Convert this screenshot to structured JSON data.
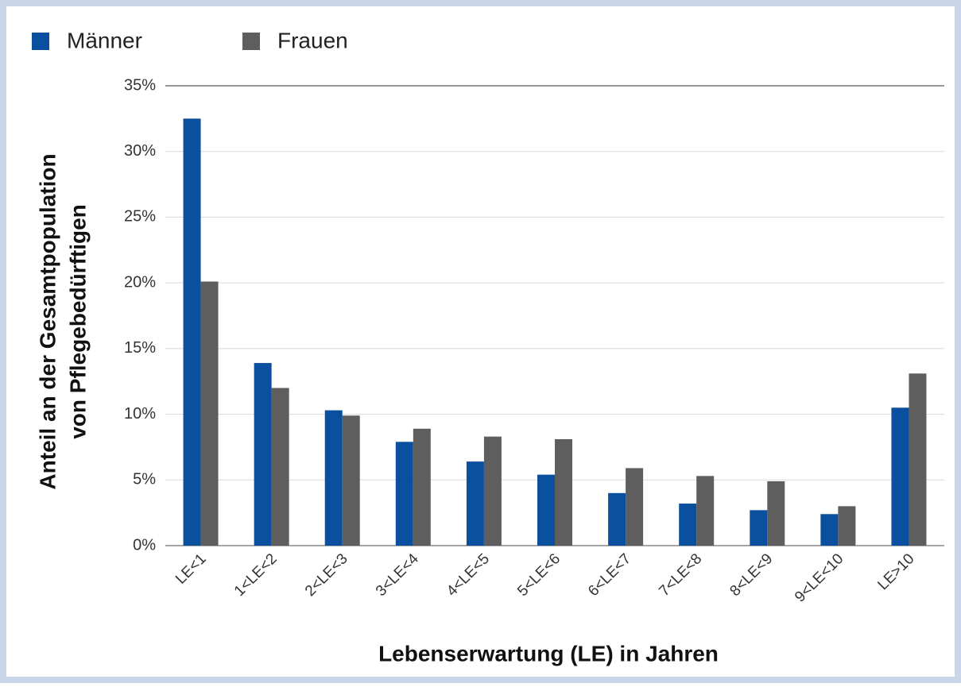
{
  "chart_data": {
    "type": "bar",
    "xlabel": "Lebenserwartung (LE) in Jahren",
    "ylabel": [
      "Anteil an der Gesamtpopulation",
      "von Pflegebedürftigen"
    ],
    "categories": [
      "LE<1",
      "1<LE<2",
      "2<LE<3",
      "3<LE<4",
      "4<LE<5",
      "5<LE<6",
      "6<LE<7",
      "7<LE<8",
      "8<LE<9",
      "9<LE<10",
      "LE>10"
    ],
    "series": [
      {
        "name": "Männer",
        "color": "#0b4f9f",
        "values": [
          32.5,
          13.9,
          10.3,
          7.9,
          6.4,
          5.4,
          4.0,
          3.2,
          2.7,
          2.4,
          10.5
        ]
      },
      {
        "name": "Frauen",
        "color": "#5e5e5e",
        "values": [
          20.1,
          12.0,
          9.9,
          8.9,
          8.3,
          8.1,
          5.9,
          5.3,
          4.9,
          3.0,
          13.1
        ]
      }
    ],
    "ylim": [
      0,
      35
    ],
    "yticks": [
      {
        "value": 0,
        "label": "0%"
      },
      {
        "value": 5,
        "label": "5%"
      },
      {
        "value": 10,
        "label": "10%"
      },
      {
        "value": 15,
        "label": "15%"
      },
      {
        "value": 20,
        "label": "20%"
      },
      {
        "value": 25,
        "label": "25%"
      },
      {
        "value": 30,
        "label": "30%"
      },
      {
        "value": 35,
        "label": "35%"
      }
    ],
    "grid": true,
    "legend": "top-left"
  }
}
